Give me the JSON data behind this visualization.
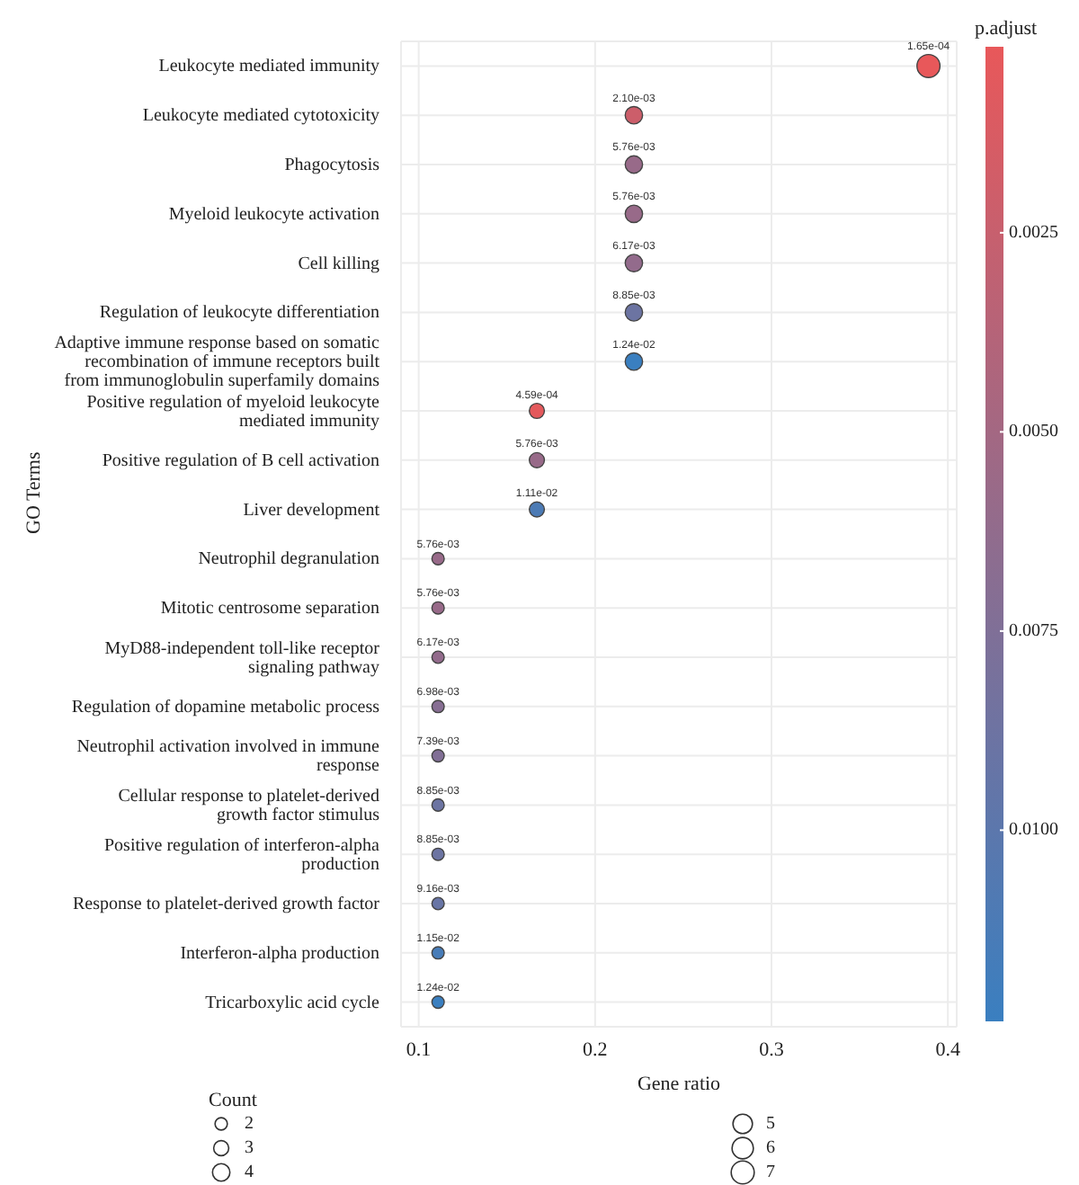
{
  "chart_data": {
    "type": "scatter",
    "orientation": "horizontal",
    "xlabel": "Gene ratio",
    "ylabel": "GO Terms",
    "clabel": "p.adjust",
    "legend_title": "Count",
    "categories": [
      "Leukocyte mediated immunity",
      "Leukocyte mediated cytotoxicity",
      "Phagocytosis",
      "Myeloid leukocyte activation",
      "Cell killing",
      "Regulation of leukocyte differentiation",
      "Adaptive immune response based on somatic recombination of immune receptors built from immunoglobulin superfamily domains",
      "Positive regulation of myeloid leukocyte mediated immunity",
      "Positive regulation of B cell activation",
      "Liver development",
      "Neutrophil degranulation",
      "Mitotic centrosome separation",
      "MyD88-independent toll-like receptor signaling pathway",
      "Regulation of dopamine metabolic process",
      "Neutrophil activation involved in immune response",
      "Cellular response to platelet-derived growth factor stimulus",
      "Positive regulation of interferon-alpha production",
      "Response to platelet-derived growth factor",
      "Interferon-alpha production",
      "Tricarboxylic acid cycle"
    ],
    "values": [
      0.389,
      0.222,
      0.222,
      0.222,
      0.222,
      0.222,
      0.222,
      0.167,
      0.167,
      0.167,
      0.111,
      0.111,
      0.111,
      0.111,
      0.111,
      0.111,
      0.111,
      0.111,
      0.111,
      0.111
    ],
    "sizes": [
      7,
      4,
      4,
      4,
      4,
      4,
      4,
      3,
      3,
      3,
      2,
      2,
      2,
      2,
      2,
      2,
      2,
      2,
      2,
      2
    ],
    "size_legend": [
      2,
      3,
      4,
      5,
      6,
      7
    ],
    "cvalues": [
      0.000165,
      0.0021,
      0.00576,
      0.00576,
      0.00617,
      0.00885,
      0.0124,
      0.000459,
      0.00576,
      0.0111,
      0.00576,
      0.00576,
      0.00617,
      0.00698,
      0.00739,
      0.00885,
      0.00885,
      0.00916,
      0.0115,
      0.0124
    ],
    "annotations": [
      {
        "text": "1.65e-04",
        "x": 0.389,
        "y": "Leukocyte mediated immunity"
      },
      {
        "text": "2.10e-03",
        "x": 0.222,
        "y": "Leukocyte mediated cytotoxicity"
      },
      {
        "text": "5.76e-03",
        "x": 0.222,
        "y": "Phagocytosis"
      },
      {
        "text": "5.76e-03",
        "x": 0.222,
        "y": "Myeloid leukocyte activation"
      },
      {
        "text": "6.17e-03",
        "x": 0.222,
        "y": "Cell killing"
      },
      {
        "text": "8.85e-03",
        "x": 0.222,
        "y": "Regulation of leukocyte differentiation"
      },
      {
        "text": "1.24e-02",
        "x": 0.222,
        "y": "Adaptive immune response based on somatic recombination of immune receptors built from immunoglobulin superfamily domains"
      },
      {
        "text": "4.59e-04",
        "x": 0.167,
        "y": "Positive regulation of myeloid leukocyte mediated immunity"
      },
      {
        "text": "5.76e-03",
        "x": 0.167,
        "y": "Positive regulation of B cell activation"
      },
      {
        "text": "1.11e-02",
        "x": 0.167,
        "y": "Liver development"
      },
      {
        "text": "5.76e-03",
        "x": 0.111,
        "y": "Neutrophil degranulation"
      },
      {
        "text": "5.76e-03",
        "x": 0.111,
        "y": "Mitotic centrosome separation"
      },
      {
        "text": "6.17e-03",
        "x": 0.111,
        "y": "MyD88-independent toll-like receptor signaling pathway"
      },
      {
        "text": "6.98e-03",
        "x": 0.111,
        "y": "Regulation of dopamine metabolic process"
      },
      {
        "text": "7.39e-03",
        "x": 0.111,
        "y": "Neutrophil activation involved in immune response"
      },
      {
        "text": "8.85e-03",
        "x": 0.111,
        "y": "Cellular response to platelet-derived growth factor stimulus"
      },
      {
        "text": "8.85e-03",
        "x": 0.111,
        "y": "Positive regulation of interferon-alpha production"
      },
      {
        "text": "9.16e-03",
        "x": 0.111,
        "y": "Response to platelet-derived growth factor"
      },
      {
        "text": "1.15e-02",
        "x": 0.111,
        "y": "Interferon-alpha production"
      },
      {
        "text": "1.24e-02",
        "x": 0.111,
        "y": "Tricarboxylic acid cycle"
      }
    ],
    "clim": [
      0.000165,
      0.0124
    ],
    "cticks": [
      {
        "value": 0.0025,
        "label": "0.0025"
      },
      {
        "value": 0.005,
        "label": "0.0050"
      },
      {
        "value": 0.0075,
        "label": "0.0075"
      },
      {
        "value": 0.01,
        "label": "0.0100"
      }
    ],
    "xlim": [
      0.09,
      0.405
    ],
    "xticks": [
      0.1,
      0.2,
      0.3,
      0.4
    ],
    "grid": true
  }
}
